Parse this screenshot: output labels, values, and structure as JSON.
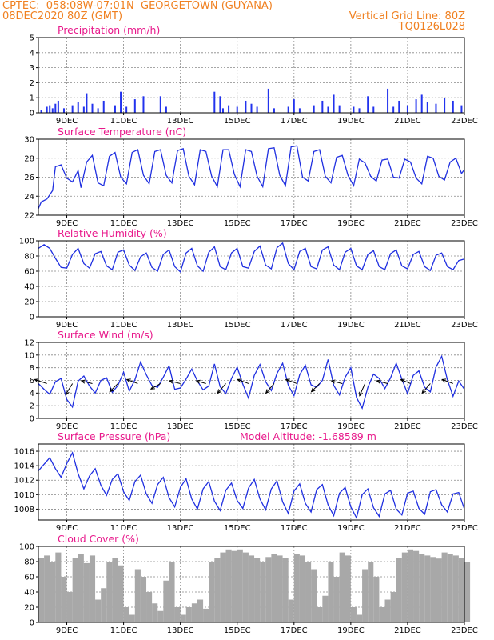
{
  "header": {
    "line1": "CPTEC:  058:08W-07:01N  GEORGETOWN (GUYANA)",
    "line2": "08DEC2020 80Z (GMT)",
    "grid_note": "Vertical Grid Line: 80Z",
    "code": "TQ0126L028"
  },
  "x_axis": {
    "ticks": [
      "9DEC",
      "11DEC",
      "13DEC",
      "15DEC",
      "17DEC",
      "19DEC",
      "21DEC",
      "23DEC"
    ],
    "tick_days": [
      9,
      11,
      13,
      15,
      17,
      19,
      21,
      23
    ],
    "start_day": 8.0,
    "end_day": 23.0
  },
  "colors": {
    "line": "#1f2fe0",
    "bar": "#2233ee",
    "cloud": "#a8a8a8",
    "title": "#e8198b",
    "header": "#f08020"
  },
  "chart_data": [
    {
      "type": "bar",
      "title": "Precipitation (mm/h)",
      "ylim": [
        0,
        5
      ],
      "yticks": [
        0,
        1,
        2,
        3,
        4,
        5
      ],
      "grid": true,
      "x": [
        8.1,
        8.3,
        8.4,
        8.5,
        8.6,
        8.7,
        8.9,
        9.2,
        9.4,
        9.6,
        9.7,
        9.9,
        10.1,
        10.3,
        10.7,
        10.9,
        11.1,
        11.4,
        11.7,
        12.3,
        12.5,
        14.2,
        14.4,
        14.5,
        14.7,
        15.0,
        15.3,
        15.5,
        15.7,
        16.1,
        16.3,
        16.8,
        17.0,
        17.2,
        17.7,
        18.0,
        18.2,
        18.4,
        18.6,
        19.1,
        19.3,
        19.6,
        19.8,
        20.3,
        20.5,
        20.7,
        21.0,
        21.3,
        21.5,
        21.7,
        22.0,
        22.3,
        22.6,
        22.9
      ],
      "values": [
        0.2,
        0.4,
        0.5,
        0.3,
        0.6,
        0.8,
        0.3,
        0.5,
        0.7,
        0.4,
        1.3,
        0.6,
        0.3,
        0.8,
        0.5,
        1.4,
        0.4,
        0.9,
        1.1,
        1.1,
        0.4,
        1.4,
        1.1,
        0.3,
        0.5,
        0.4,
        0.8,
        0.6,
        0.4,
        1.6,
        0.3,
        0.4,
        0.9,
        0.3,
        0.5,
        0.8,
        0.4,
        1.2,
        0.5,
        0.4,
        0.3,
        1.1,
        0.4,
        1.6,
        0.4,
        0.8,
        0.5,
        0.9,
        1.2,
        0.7,
        0.6,
        1.0,
        0.8,
        0.5
      ]
    },
    {
      "type": "line",
      "title": "Surface Temperature (nC)",
      "ylim": [
        22,
        30
      ],
      "yticks": [
        22,
        24,
        26,
        28,
        30
      ],
      "grid": true,
      "x": [
        8.0,
        8.1,
        8.3,
        8.5,
        8.6,
        8.8,
        9.0,
        9.2,
        9.4,
        9.5,
        9.7,
        9.9,
        10.1,
        10.3,
        10.5,
        10.7,
        10.9,
        11.1,
        11.3,
        11.5,
        11.7,
        11.9,
        12.1,
        12.3,
        12.5,
        12.7,
        12.9,
        13.1,
        13.3,
        13.5,
        13.7,
        13.9,
        14.1,
        14.3,
        14.5,
        14.7,
        14.9,
        15.1,
        15.3,
        15.5,
        15.7,
        15.9,
        16.1,
        16.3,
        16.5,
        16.7,
        16.9,
        17.1,
        17.3,
        17.5,
        17.7,
        17.9,
        18.1,
        18.3,
        18.5,
        18.7,
        18.9,
        19.1,
        19.3,
        19.5,
        19.7,
        19.9,
        20.1,
        20.3,
        20.5,
        20.7,
        20.9,
        21.1,
        21.3,
        21.5,
        21.7,
        21.9,
        22.1,
        22.3,
        22.5,
        22.7,
        22.9,
        23.0
      ],
      "values": [
        22.7,
        23.4,
        23.7,
        24.6,
        27.1,
        27.3,
        25.9,
        25.5,
        26.7,
        24.9,
        27.6,
        28.3,
        25.4,
        25.1,
        28.2,
        28.6,
        26.0,
        25.3,
        28.6,
        28.9,
        26.2,
        25.3,
        28.7,
        28.9,
        26.2,
        25.4,
        28.8,
        29.0,
        26.1,
        25.2,
        28.9,
        28.7,
        26.1,
        25.0,
        28.9,
        28.9,
        26.3,
        25.0,
        28.9,
        28.7,
        26.1,
        25.0,
        29.0,
        29.1,
        26.2,
        25.1,
        29.2,
        29.3,
        26.0,
        25.6,
        28.7,
        28.9,
        26.1,
        25.4,
        28.1,
        28.3,
        26.2,
        25.1,
        27.9,
        27.5,
        26.1,
        25.6,
        27.8,
        27.9,
        26.0,
        25.9,
        27.9,
        27.6,
        25.9,
        25.3,
        28.2,
        28.0,
        26.1,
        25.7,
        27.6,
        28.0,
        26.4,
        26.8
      ]
    },
    {
      "type": "line",
      "title": "Relative Humidity (%)",
      "ylim": [
        0,
        100
      ],
      "yticks": [
        0,
        20,
        40,
        60,
        80,
        100
      ],
      "grid": true,
      "x": [
        8.0,
        8.2,
        8.4,
        8.6,
        8.8,
        9.0,
        9.2,
        9.4,
        9.6,
        9.8,
        10.0,
        10.2,
        10.4,
        10.6,
        10.8,
        11.0,
        11.2,
        11.4,
        11.6,
        11.8,
        12.0,
        12.2,
        12.4,
        12.6,
        12.8,
        13.0,
        13.2,
        13.4,
        13.6,
        13.8,
        14.0,
        14.2,
        14.4,
        14.6,
        14.8,
        15.0,
        15.2,
        15.4,
        15.6,
        15.8,
        16.0,
        16.2,
        16.4,
        16.6,
        16.8,
        17.0,
        17.2,
        17.4,
        17.6,
        17.8,
        18.0,
        18.2,
        18.4,
        18.6,
        18.8,
        19.0,
        19.2,
        19.4,
        19.6,
        19.8,
        20.0,
        20.2,
        20.4,
        20.6,
        20.8,
        21.0,
        21.2,
        21.4,
        21.6,
        21.8,
        22.0,
        22.2,
        22.4,
        22.6,
        22.8,
        23.0
      ],
      "values": [
        90,
        95,
        90,
        77,
        65,
        64,
        82,
        90,
        70,
        64,
        83,
        86,
        67,
        62,
        85,
        88,
        68,
        61,
        79,
        84,
        65,
        60,
        82,
        88,
        66,
        59,
        84,
        90,
        67,
        60,
        85,
        92,
        66,
        62,
        84,
        90,
        66,
        64,
        86,
        93,
        68,
        63,
        91,
        97,
        70,
        62,
        86,
        90,
        66,
        63,
        88,
        92,
        68,
        62,
        85,
        90,
        67,
        62,
        82,
        87,
        66,
        62,
        83,
        88,
        67,
        63,
        82,
        86,
        66,
        61,
        81,
        84,
        66,
        62,
        74,
        76
      ]
    },
    {
      "type": "line",
      "title": "Surface Wind (m/s)",
      "ylim": [
        0,
        12
      ],
      "yticks": [
        0,
        2,
        4,
        6,
        8,
        10,
        12
      ],
      "grid": true,
      "x": [
        8.0,
        8.2,
        8.4,
        8.6,
        8.8,
        9.0,
        9.2,
        9.4,
        9.6,
        9.8,
        10.0,
        10.2,
        10.4,
        10.6,
        10.8,
        11.0,
        11.2,
        11.4,
        11.6,
        11.8,
        12.0,
        12.2,
        12.4,
        12.6,
        12.8,
        13.0,
        13.2,
        13.4,
        13.6,
        13.8,
        14.0,
        14.2,
        14.4,
        14.6,
        14.8,
        15.0,
        15.2,
        15.4,
        15.6,
        15.8,
        16.0,
        16.2,
        16.4,
        16.6,
        16.8,
        17.0,
        17.2,
        17.4,
        17.6,
        17.8,
        18.0,
        18.2,
        18.4,
        18.6,
        18.8,
        19.0,
        19.2,
        19.4,
        19.6,
        19.8,
        20.0,
        20.2,
        20.4,
        20.6,
        20.8,
        21.0,
        21.2,
        21.4,
        21.6,
        21.8,
        22.0,
        22.2,
        22.4,
        22.6,
        22.8,
        23.0
      ],
      "values": [
        5.5,
        4.6,
        3.8,
        5.8,
        6.3,
        3.0,
        1.8,
        5.9,
        6.7,
        5.1,
        4.0,
        6.0,
        6.4,
        4.1,
        5.2,
        7.3,
        4.3,
        6.1,
        8.9,
        6.9,
        5.2,
        4.9,
        6.5,
        8.3,
        4.6,
        4.8,
        6.2,
        7.8,
        5.9,
        4.5,
        5.1,
        8.6,
        5.0,
        3.9,
        6.3,
        8.1,
        5.4,
        3.2,
        6.8,
        8.5,
        5.8,
        4.4,
        7.1,
        8.7,
        5.2,
        3.6,
        6.9,
        8.4,
        5.3,
        4.9,
        6.0,
        9.3,
        5.2,
        3.7,
        6.5,
        8.0,
        3.3,
        1.6,
        4.9,
        7.0,
        6.3,
        4.7,
        6.4,
        8.7,
        6.2,
        3.9,
        6.8,
        7.5,
        4.9,
        4.2,
        8.1,
        9.8,
        6.1,
        3.5,
        5.9,
        4.6
      ],
      "arrows": [
        {
          "day": 8.3,
          "u": -4.5,
          "v": 1.5
        },
        {
          "day": 9.2,
          "u": -2.5,
          "v": -4.0
        },
        {
          "day": 9.9,
          "u": -4.0,
          "v": 1.0
        },
        {
          "day": 10.8,
          "u": -3.0,
          "v": -3.0
        },
        {
          "day": 11.5,
          "u": -4.0,
          "v": 1.5
        },
        {
          "day": 12.3,
          "u": -3.5,
          "v": -2.0
        },
        {
          "day": 13.0,
          "u": -4.0,
          "v": 1.0
        },
        {
          "day": 13.9,
          "u": -3.5,
          "v": 1.0
        },
        {
          "day": 14.6,
          "u": -3.0,
          "v": -3.5
        },
        {
          "day": 15.4,
          "u": -4.0,
          "v": 1.5
        },
        {
          "day": 16.3,
          "u": -3.0,
          "v": -3.5
        },
        {
          "day": 17.1,
          "u": -4.0,
          "v": 1.5
        },
        {
          "day": 17.9,
          "u": -3.0,
          "v": -3.0
        },
        {
          "day": 18.7,
          "u": -4.0,
          "v": 1.0
        },
        {
          "day": 19.5,
          "u": -2.0,
          "v": -4.5
        },
        {
          "day": 20.3,
          "u": -4.0,
          "v": 1.0
        },
        {
          "day": 21.1,
          "u": -3.5,
          "v": 1.5
        },
        {
          "day": 21.8,
          "u": -3.0,
          "v": -3.5
        },
        {
          "day": 22.6,
          "u": -4.0,
          "v": 1.5
        }
      ]
    },
    {
      "type": "line",
      "title": "Surface Pressure (hPa)",
      "annotation": "Model Altitude: -1.68589 m",
      "ylim": [
        1006.5,
        1017
      ],
      "yticks": [
        1008,
        1010,
        1012,
        1014,
        1016
      ],
      "grid": true,
      "x": [
        8.0,
        8.2,
        8.4,
        8.6,
        8.8,
        9.0,
        9.2,
        9.4,
        9.6,
        9.8,
        10.0,
        10.2,
        10.4,
        10.6,
        10.8,
        11.0,
        11.2,
        11.4,
        11.6,
        11.8,
        12.0,
        12.2,
        12.4,
        12.6,
        12.8,
        13.0,
        13.2,
        13.4,
        13.6,
        13.8,
        14.0,
        14.2,
        14.4,
        14.6,
        14.8,
        15.0,
        15.2,
        15.4,
        15.6,
        15.8,
        16.0,
        16.2,
        16.4,
        16.6,
        16.8,
        17.0,
        17.2,
        17.4,
        17.6,
        17.8,
        18.0,
        18.2,
        18.4,
        18.6,
        18.8,
        19.0,
        19.2,
        19.4,
        19.6,
        19.8,
        20.0,
        20.2,
        20.4,
        20.6,
        20.8,
        21.0,
        21.2,
        21.4,
        21.6,
        21.8,
        22.0,
        22.2,
        22.4,
        22.6,
        22.8,
        23.0
      ],
      "values": [
        1013.3,
        1014.2,
        1015.1,
        1013.6,
        1012.4,
        1014.3,
        1015.8,
        1012.9,
        1010.8,
        1012.6,
        1013.6,
        1011.3,
        1009.9,
        1012.1,
        1012.9,
        1010.4,
        1009.2,
        1011.8,
        1012.7,
        1010.1,
        1008.8,
        1011.4,
        1012.4,
        1009.6,
        1008.3,
        1011.0,
        1012.2,
        1009.4,
        1008.0,
        1010.8,
        1011.8,
        1009.1,
        1007.8,
        1010.6,
        1011.6,
        1009.2,
        1008.1,
        1010.9,
        1012.1,
        1009.4,
        1007.9,
        1010.8,
        1011.9,
        1009.0,
        1007.4,
        1010.5,
        1011.5,
        1008.8,
        1007.6,
        1010.7,
        1011.4,
        1008.6,
        1007.1,
        1010.2,
        1011.0,
        1008.3,
        1006.8,
        1010.0,
        1010.8,
        1008.2,
        1007.0,
        1010.1,
        1010.6,
        1008.0,
        1007.2,
        1010.2,
        1010.5,
        1008.1,
        1007.3,
        1010.4,
        1010.7,
        1008.6,
        1007.6,
        1010.1,
        1010.3,
        1008.0
      ]
    },
    {
      "type": "area",
      "title": "Cloud Cover (%)",
      "ylim": [
        0,
        100
      ],
      "yticks": [
        0,
        20,
        40,
        60,
        80,
        100
      ],
      "grid": true,
      "x": [
        8.0,
        8.2,
        8.4,
        8.6,
        8.8,
        9.0,
        9.2,
        9.4,
        9.6,
        9.8,
        10.0,
        10.2,
        10.4,
        10.6,
        10.8,
        11.0,
        11.2,
        11.4,
        11.6,
        11.8,
        12.0,
        12.2,
        12.4,
        12.6,
        12.8,
        13.0,
        13.2,
        13.4,
        13.6,
        13.8,
        14.0,
        14.2,
        14.4,
        14.6,
        14.8,
        15.0,
        15.2,
        15.4,
        15.6,
        15.8,
        16.0,
        16.2,
        16.4,
        16.6,
        16.8,
        17.0,
        17.2,
        17.4,
        17.6,
        17.8,
        18.0,
        18.2,
        18.4,
        18.6,
        18.8,
        19.0,
        19.2,
        19.4,
        19.6,
        19.8,
        20.0,
        20.2,
        20.4,
        20.6,
        20.8,
        21.0,
        21.2,
        21.4,
        21.6,
        21.8,
        22.0,
        22.2,
        22.4,
        22.6,
        22.8,
        23.0
      ],
      "values": [
        85,
        88,
        80,
        92,
        60,
        40,
        85,
        90,
        78,
        88,
        30,
        45,
        80,
        85,
        75,
        20,
        10,
        70,
        60,
        40,
        25,
        15,
        55,
        80,
        20,
        10,
        20,
        25,
        30,
        18,
        80,
        85,
        92,
        96,
        94,
        96,
        92,
        88,
        85,
        80,
        86,
        90,
        88,
        85,
        30,
        90,
        88,
        80,
        70,
        20,
        35,
        80,
        60,
        92,
        88,
        20,
        10,
        70,
        80,
        60,
        20,
        30,
        40,
        85,
        92,
        96,
        94,
        90,
        88,
        86,
        84,
        92,
        90,
        88,
        85,
        80
      ]
    }
  ]
}
